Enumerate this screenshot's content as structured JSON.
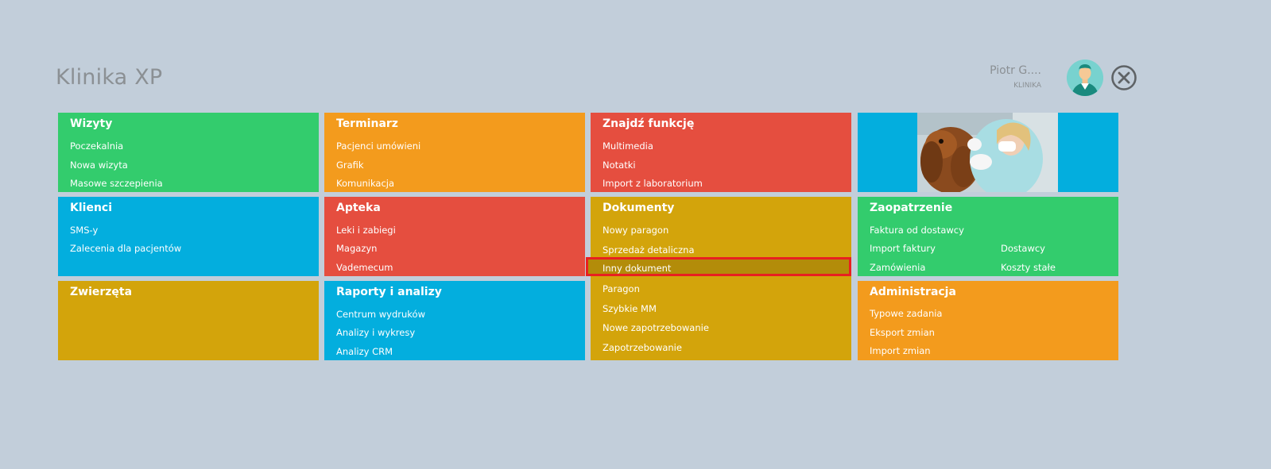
{
  "app": {
    "title": "Klinika XP"
  },
  "user": {
    "name": "Piotr G....",
    "role": "KLINIKA"
  },
  "tiles": {
    "wizyty": {
      "title": "Wizyty",
      "items": [
        "Poczekalnia",
        "Nowa wizyta",
        "Masowe szczepienia"
      ],
      "color": "#33cc6d"
    },
    "terminarz": {
      "title": "Terminarz",
      "items": [
        "Pacjenci umówieni",
        "Grafik",
        "Komunikacja"
      ],
      "color": "#f39b1d"
    },
    "znajdz": {
      "title": "Znajdź funkcję",
      "items": [
        "Multimedia",
        "Notatki",
        "Import z laboratorium"
      ],
      "color": "#e54e3f"
    },
    "klienci": {
      "title": "Klienci",
      "items": [
        "SMS-y",
        "Zalecenia dla pacjentów"
      ],
      "color": "#03aede"
    },
    "apteka": {
      "title": "Apteka",
      "items": [
        "Leki i zabiegi",
        "Magazyn",
        "Vademecum"
      ],
      "color": "#e54e3f"
    },
    "dokumenty": {
      "title": "Dokumenty",
      "items": [
        "Nowy paragon",
        "Sprzedaż detaliczna",
        "Inny dokument",
        "Paragon",
        "Szybkie MM",
        "Nowe zapotrzebowanie",
        "Zapotrzebowanie"
      ],
      "color": "#d3a40b"
    },
    "zaopatrzenie": {
      "title": "Zaopatrzenie",
      "items": [
        "Faktura od dostawcy",
        "Import faktury",
        "Zamówienia",
        "Dostawcy",
        "Koszty stałe"
      ],
      "color": "#33cc6d"
    },
    "zwierzeta": {
      "title": "Zwierzęta",
      "items": [],
      "color": "#d3a40b"
    },
    "raporty": {
      "title": "Raporty i analizy",
      "items": [
        "Centrum wydruków",
        "Analizy i wykresy",
        "Analizy CRM"
      ],
      "color": "#03aede"
    },
    "administracja": {
      "title": "Administracja",
      "items": [
        "Typowe zadania",
        "Eksport zmian",
        "Import zmian"
      ],
      "color": "#f39b1d"
    }
  },
  "highlight_color": "#e82020"
}
